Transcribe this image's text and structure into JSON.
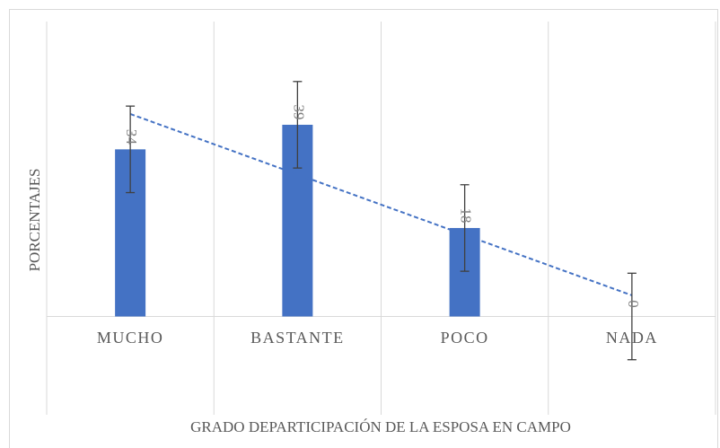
{
  "chart_data": {
    "type": "bar",
    "categories": [
      "MUCHO",
      "BASTANTE",
      "POCO",
      "NADA"
    ],
    "values": [
      34,
      39,
      18,
      0
    ],
    "errors": [
      8.8,
      8.8,
      8.8,
      8.8
    ],
    "color": "#4472c4",
    "x_label": "GRADO DEPARTICIPACIÓN DE LA ESPOSA EN CAMPO",
    "y_label": "PORCENTAJES",
    "ylim": [
      -20,
      60
    ],
    "trendline": "linear",
    "trendline_color": "#4472c4",
    "grid": true
  }
}
